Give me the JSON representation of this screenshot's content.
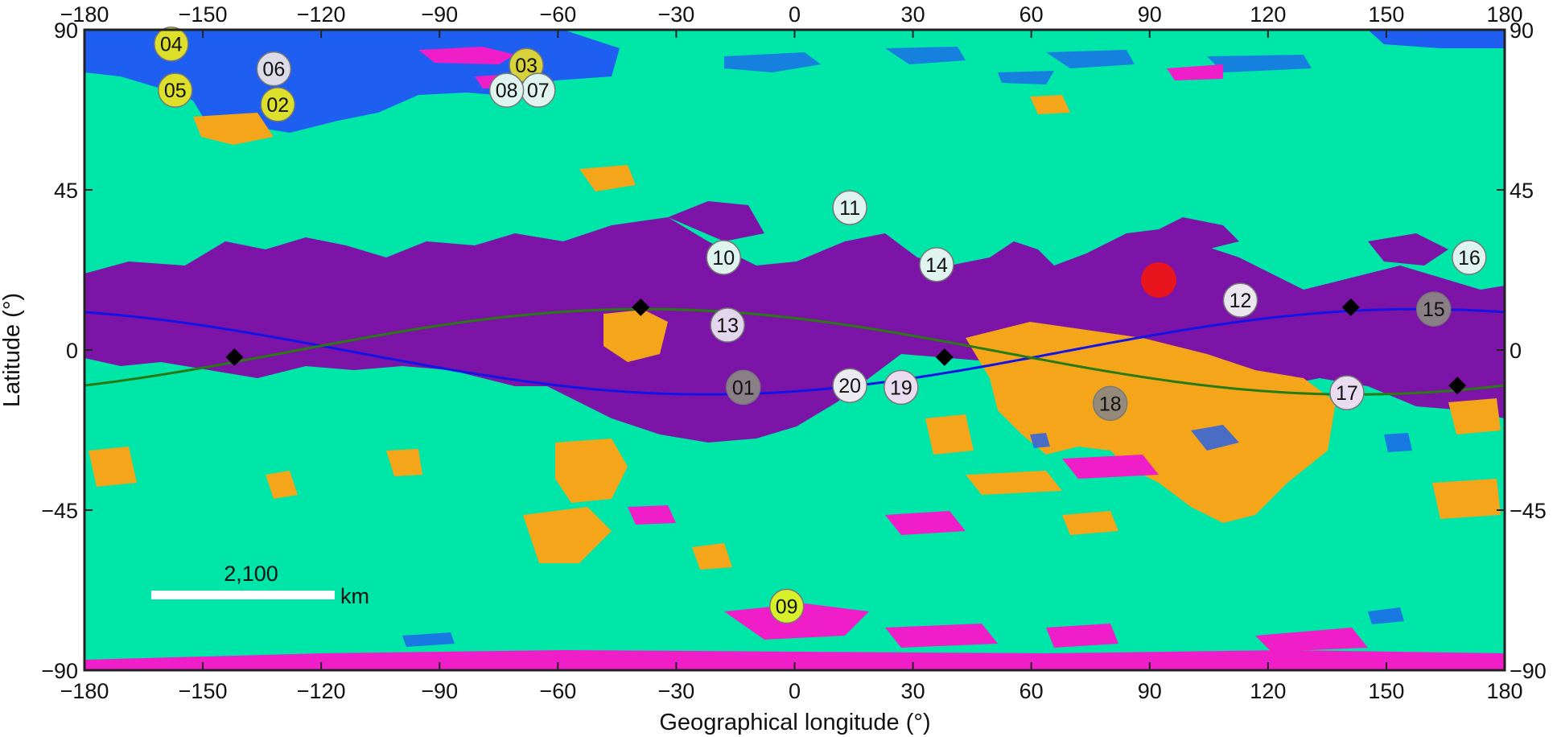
{
  "map": {
    "xlabel": "Geographical longitude (°)",
    "ylabel": "Latitude (°)",
    "xlim": [
      -180,
      180
    ],
    "ylim": [
      -90,
      90
    ],
    "x_ticks": [
      -180,
      -150,
      -120,
      -90,
      -60,
      -30,
      0,
      30,
      60,
      90,
      120,
      150,
      180
    ],
    "y_ticks": [
      90,
      45,
      0,
      -45,
      -90
    ],
    "x_tick_labels": [
      "−180",
      "−150",
      "−120",
      "−90",
      "−60",
      "−30",
      "0",
      "30",
      "60",
      "90",
      "120",
      "150",
      "180"
    ],
    "y_tick_labels": [
      "90",
      "45",
      "0",
      "−45",
      "−90"
    ],
    "colors": {
      "background": "#00e5a8",
      "purple": "#7d14a8",
      "orange": "#f5a51a",
      "blue": "#1e5ef0",
      "magenta": "#f01ec8",
      "red": "#e8141e",
      "subsolar_curve": "#1414e6",
      "green_curve": "#2a7a14",
      "diamond": "#000000"
    },
    "scale_bar": {
      "value": "2,100",
      "unit": "km"
    },
    "markers": [
      {
        "id": "01",
        "lon": -13,
        "lat": -10.5,
        "color": "#8a7f86"
      },
      {
        "id": "02",
        "lon": -131,
        "lat": 69,
        "color": "#dde02a"
      },
      {
        "id": "03",
        "lon": -68,
        "lat": 80,
        "color": "#d8d23a"
      },
      {
        "id": "04",
        "lon": -158,
        "lat": 86,
        "color": "#dde02a"
      },
      {
        "id": "05",
        "lon": -157,
        "lat": 73,
        "color": "#dde02a"
      },
      {
        "id": "06",
        "lon": -132,
        "lat": 79,
        "color": "#dcdce8"
      },
      {
        "id": "07",
        "lon": -65,
        "lat": 73,
        "color": "#dff4ee"
      },
      {
        "id": "08",
        "lon": -73,
        "lat": 73,
        "color": "#dff4ee"
      },
      {
        "id": "09",
        "lon": -2,
        "lat": -72,
        "color": "#d8f02a"
      },
      {
        "id": "10",
        "lon": -18,
        "lat": 26,
        "color": "#dff4ee"
      },
      {
        "id": "11",
        "lon": 14,
        "lat": 40,
        "color": "#dff4ee"
      },
      {
        "id": "12",
        "lon": 113,
        "lat": 14,
        "color": "#ebe6f0"
      },
      {
        "id": "13",
        "lon": -17,
        "lat": 7,
        "color": "#e2d6ec"
      },
      {
        "id": "14",
        "lon": 36,
        "lat": 24,
        "color": "#dff4ee"
      },
      {
        "id": "15",
        "lon": 162,
        "lat": 11.5,
        "color": "#8a7f86"
      },
      {
        "id": "16",
        "lon": 171,
        "lat": 26,
        "color": "#dff4ee"
      },
      {
        "id": "17",
        "lon": 140,
        "lat": -12,
        "color": "#eadcf0"
      },
      {
        "id": "18",
        "lon": 80,
        "lat": -15,
        "color": "#958a7a"
      },
      {
        "id": "19",
        "lon": 27,
        "lat": -10.5,
        "color": "#eadcf0"
      },
      {
        "id": "20",
        "lon": 14,
        "lat": -10,
        "color": "#eaeaf0"
      }
    ],
    "diamonds": [
      {
        "lon": -142,
        "lat": -2
      },
      {
        "lon": -39,
        "lat": 12
      },
      {
        "lon": 38,
        "lat": -2
      },
      {
        "lon": 141,
        "lat": 12
      },
      {
        "lon": 168,
        "lat": -10
      }
    ]
  }
}
